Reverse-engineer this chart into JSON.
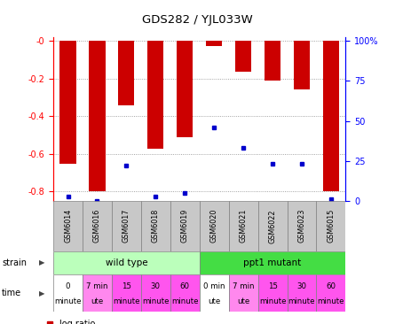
{
  "title": "GDS282 / YJL033W",
  "samples": [
    "GSM6014",
    "GSM6016",
    "GSM6017",
    "GSM6018",
    "GSM6019",
    "GSM6020",
    "GSM6021",
    "GSM6022",
    "GSM6023",
    "GSM6015"
  ],
  "log_ratio": [
    -0.655,
    -0.8,
    -0.34,
    -0.575,
    -0.51,
    -0.025,
    -0.165,
    -0.21,
    -0.255,
    -0.8
  ],
  "percentile": [
    3,
    0,
    22,
    3,
    5,
    46,
    33,
    23,
    23,
    1
  ],
  "ylim": [
    -0.85,
    0.02
  ],
  "y_ticks": [
    0.0,
    -0.2,
    -0.4,
    -0.6,
    -0.8
  ],
  "y_tick_labels": [
    "-0",
    "-0.2",
    "-0.4",
    "-0.6",
    "-0.8"
  ],
  "right_y_ticks": [
    0,
    25,
    50,
    75,
    100
  ],
  "right_y_tick_labels": [
    "0",
    "25",
    "50",
    "75",
    "100%"
  ],
  "bar_color": "#cc0000",
  "dot_color": "#0000cc",
  "strain_wt_label": "wild type",
  "strain_mut_label": "ppt1 mutant",
  "strain_wt_color": "#bbffbb",
  "strain_mut_color": "#44dd44",
  "time_labels_line1": [
    "0",
    "7 min",
    "15",
    "30",
    "60",
    "0 min",
    "7 min",
    "15",
    "30",
    "60"
  ],
  "time_labels_line2": [
    "minute",
    "ute",
    "minute",
    "minute",
    "minute",
    "ute",
    "ute",
    "minute",
    "minute",
    "minute"
  ],
  "time_colors": [
    "#ffffff",
    "#ff88ee",
    "#ff55ee",
    "#ff55ee",
    "#ff55ee",
    "#ffffff",
    "#ff88ee",
    "#ff55ee",
    "#ff55ee",
    "#ff55ee"
  ],
  "gsm_bg_color": "#c8c8c8",
  "legend_log_color": "#cc0000",
  "legend_pct_color": "#0000cc",
  "bg_color": "#ffffff",
  "grid_color": "#888888"
}
